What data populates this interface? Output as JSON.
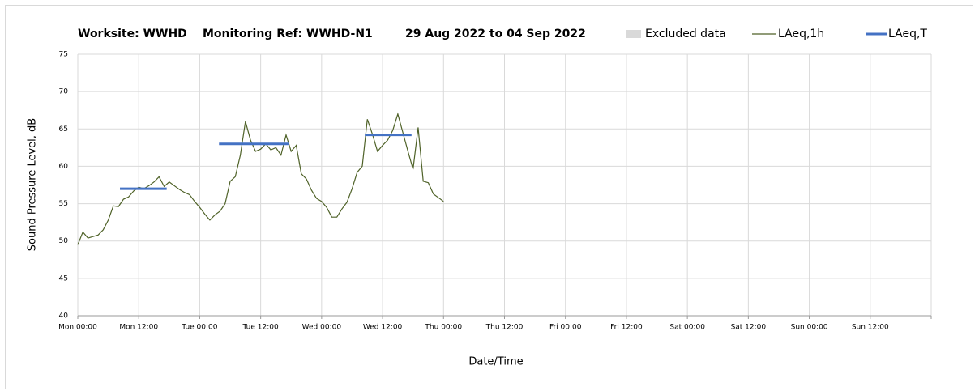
{
  "chart_data": {
    "type": "line",
    "title": [
      "Worksite: WWHD",
      "Monitoring Ref: WWHD-N1",
      "29 Aug 2022 to 04 Sep 2022"
    ],
    "xlabel": "Date/Time",
    "ylabel": "Sound Pressure Level, dB",
    "xlim": [
      0,
      168
    ],
    "xticks": [
      {
        "value": 0,
        "label": "Mon 00:00"
      },
      {
        "value": 12,
        "label": "Mon 12:00"
      },
      {
        "value": 24,
        "label": "Tue 00:00"
      },
      {
        "value": 36,
        "label": "Tue 12:00"
      },
      {
        "value": 48,
        "label": "Wed 00:00"
      },
      {
        "value": 60,
        "label": "Wed 12:00"
      },
      {
        "value": 72,
        "label": "Thu 00:00"
      },
      {
        "value": 84,
        "label": "Thu 12:00"
      },
      {
        "value": 96,
        "label": "Fri 00:00"
      },
      {
        "value": 108,
        "label": "Fri 12:00"
      },
      {
        "value": 120,
        "label": "Sat 00:00"
      },
      {
        "value": 132,
        "label": "Sat 12:00"
      },
      {
        "value": 144,
        "label": "Sun 00:00"
      },
      {
        "value": 156,
        "label": "Sun 12:00"
      },
      168
    ],
    "ylim": [
      40,
      75
    ],
    "yticks": [
      40,
      45,
      50,
      55,
      60,
      65,
      70,
      75
    ],
    "grid": true,
    "excluded": {
      "name": "Excluded data",
      "color": "#d9d9d9"
    },
    "series": [
      {
        "name": "LAeq,1h",
        "color": "#4f6228",
        "x": [
          0,
          1,
          2,
          3,
          4,
          5,
          6,
          7,
          8,
          9,
          10,
          11,
          12,
          13,
          14,
          15,
          16,
          17,
          18,
          19,
          20,
          21,
          22,
          23,
          24,
          25,
          26,
          27,
          28,
          29,
          30,
          31,
          32,
          33,
          34,
          35,
          36,
          37,
          38,
          39,
          40,
          41,
          42,
          43,
          44,
          45,
          46,
          47,
          48,
          49,
          50,
          51,
          52,
          53,
          54,
          55,
          56,
          57,
          58,
          59,
          60,
          61,
          62,
          63,
          64,
          65,
          66,
          67,
          68,
          69,
          70,
          71,
          72
        ],
        "values": [
          49.5,
          51.2,
          50.4,
          50.6,
          50.8,
          51.5,
          52.8,
          54.7,
          54.6,
          55.6,
          55.9,
          56.7,
          57.2,
          57.0,
          57.4,
          57.9,
          58.6,
          57.3,
          57.9,
          57.4,
          56.9,
          56.5,
          56.2,
          55.3,
          54.5,
          53.6,
          52.8,
          53.5,
          54.0,
          55.0,
          58.0,
          58.6,
          61.5,
          66.0,
          63.5,
          62.0,
          62.3,
          63.0,
          62.2,
          62.5,
          61.5,
          64.2,
          62.0,
          62.8,
          59.0,
          58.3,
          56.8,
          55.7,
          55.3,
          54.5,
          53.2,
          53.2,
          54.3,
          55.2,
          57.0,
          59.2,
          60.0,
          66.3,
          64.3,
          62.0,
          62.8,
          63.5,
          64.8,
          67.0,
          64.5,
          62.0,
          59.6,
          65.2,
          58.0,
          57.8,
          56.3,
          55.8,
          55.3
        ]
      }
    ],
    "periods": {
      "name": "LAeq,T",
      "color": "#4472c4",
      "items": [
        {
          "start": 8.3,
          "end": 17.5,
          "value": 57.0
        },
        {
          "start": 27.8,
          "end": 41.5,
          "value": 63.0
        },
        {
          "start": 56.5,
          "end": 65.7,
          "value": 64.2
        }
      ]
    }
  }
}
